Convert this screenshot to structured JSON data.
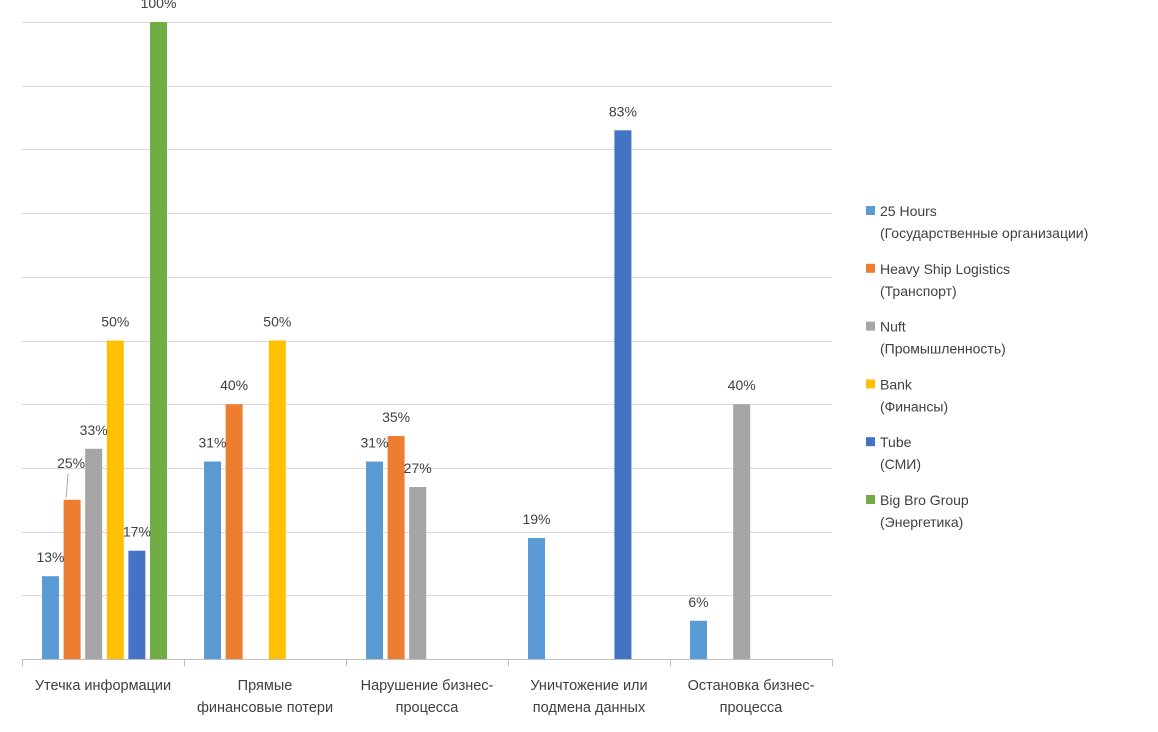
{
  "chart_data": {
    "type": "bar",
    "title": "",
    "xlabel": "",
    "ylabel": "",
    "ylim": [
      0,
      100
    ],
    "grid": true,
    "legend_position": "right",
    "categories": [
      [
        "Утечка информации"
      ],
      [
        "Прямые",
        "финансовые потери"
      ],
      [
        "Нарушение бизнес-",
        "процесса"
      ],
      [
        "Уничтожение или",
        "подмена данных"
      ],
      [
        "Остановка бизнес-",
        "процесса"
      ]
    ],
    "series": [
      {
        "name": [
          "25 Hours",
          "(Государственные организации)"
        ],
        "color": "#5b9bd5",
        "values": [
          13,
          31,
          31,
          19,
          6
        ]
      },
      {
        "name": [
          "Heavy Ship Logistics",
          "(Транспорт)"
        ],
        "color": "#ed7d31",
        "values": [
          25,
          40,
          35,
          null,
          null
        ]
      },
      {
        "name": [
          "Nuft",
          "(Промышленность)"
        ],
        "color": "#a5a5a5",
        "values": [
          33,
          null,
          27,
          null,
          40
        ]
      },
      {
        "name": [
          "Bank",
          "(Финансы)"
        ],
        "color": "#ffc000",
        "values": [
          50,
          50,
          null,
          null,
          null
        ]
      },
      {
        "name": [
          "Tube",
          "(СМИ)"
        ],
        "color": "#4472c4",
        "values": [
          17,
          null,
          null,
          83,
          null
        ]
      },
      {
        "name": [
          "Big Bro Group",
          "(Энергетика)"
        ],
        "color": "#70ad47",
        "values": [
          100,
          null,
          null,
          null,
          null
        ]
      }
    ],
    "data_label_suffix": "%"
  }
}
